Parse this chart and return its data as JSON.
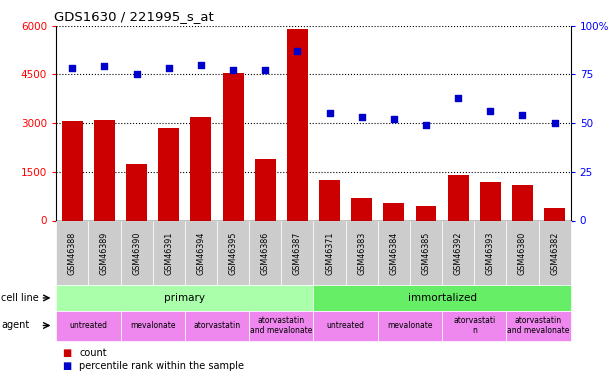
{
  "title": "GDS1630 / 221995_s_at",
  "samples": [
    "GSM46388",
    "GSM46389",
    "GSM46390",
    "GSM46391",
    "GSM46394",
    "GSM46395",
    "GSM46386",
    "GSM46387",
    "GSM46371",
    "GSM46383",
    "GSM46384",
    "GSM46385",
    "GSM46392",
    "GSM46393",
    "GSM46380",
    "GSM46382"
  ],
  "counts": [
    3050,
    3100,
    1750,
    2850,
    3200,
    4550,
    1900,
    5900,
    1250,
    700,
    550,
    450,
    1400,
    1200,
    1100,
    400
  ],
  "percentiles": [
    78,
    79,
    75,
    78,
    80,
    77,
    77,
    87,
    55,
    53,
    52,
    49,
    63,
    56,
    54,
    50
  ],
  "bar_color": "#cc0000",
  "dot_color": "#0000cc",
  "ylim_left": [
    0,
    6000
  ],
  "ylim_right": [
    0,
    100
  ],
  "yticks_left": [
    0,
    1500,
    3000,
    4500,
    6000
  ],
  "ytick_labels_left": [
    "0",
    "1500",
    "3000",
    "4500",
    "6000"
  ],
  "yticks_right": [
    0,
    25,
    50,
    75,
    100
  ],
  "ytick_labels_right": [
    "0",
    "25",
    "50",
    "75",
    "100%"
  ],
  "cell_line_primary_color": "#aaffaa",
  "cell_line_immortalized_color": "#66ee66",
  "agent_color": "#ee88ee",
  "tick_label_bg": "#cccccc",
  "agent_labels": [
    "untreated",
    "mevalonate",
    "atorvastatin",
    "atorvastatin\nand mevalonate",
    "untreated",
    "mevalonate",
    "atorvastati\nn",
    "atorvastatin\nand mevalonate"
  ],
  "agent_sizes": [
    2,
    2,
    2,
    2,
    2,
    2,
    2,
    2
  ]
}
